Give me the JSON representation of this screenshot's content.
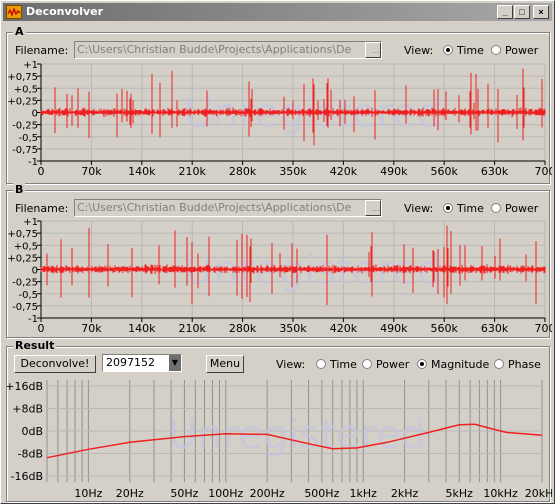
{
  "window": {
    "title": "Deconvolver",
    "min_label": "_",
    "max_label": "□",
    "close_label": "×"
  },
  "colors": {
    "wave": "#ee2020",
    "grid": "#b8b8b8",
    "plot_bg": "#d4d0c8"
  },
  "panel_a": {
    "label": "A",
    "filename_label": "Filename:",
    "filename": "C:\\Users\\Christian Budde\\Projects\\Applications\\De",
    "browse_label": "...",
    "view_label": "View:",
    "opt_time": "Time",
    "opt_power": "Power",
    "selected": "Time",
    "y_ticks": [
      "+1",
      "+0,75",
      "+0,5",
      "+0,25",
      "0",
      "-0,25",
      "-0,5",
      "-0,75",
      "-1"
    ],
    "x_ticks": [
      "0",
      "70k",
      "140k",
      "210k",
      "280k",
      "350k",
      "420k",
      "490k",
      "560k",
      "630k",
      "700"
    ]
  },
  "panel_b": {
    "label": "B",
    "filename_label": "Filename:",
    "filename": "C:\\Users\\Christian Budde\\Projects\\Applications\\De",
    "browse_label": "...",
    "view_label": "View:",
    "opt_time": "Time",
    "opt_power": "Power",
    "selected": "Time",
    "y_ticks": [
      "+1",
      "+0,75",
      "+0,5",
      "+0,25",
      "0",
      "-0,25",
      "-0,5",
      "-0,75",
      "-1"
    ],
    "x_ticks": [
      "0",
      "70k",
      "140k",
      "210k",
      "280k",
      "350k",
      "420k",
      "490k",
      "560k",
      "630k",
      "700"
    ]
  },
  "result": {
    "label": "Result",
    "deconvolve_label": "Deconvolve!",
    "fft_size": "2097152",
    "menu_label": "Menu",
    "view_label": "View:",
    "opt_time": "Time",
    "opt_power": "Power",
    "opt_magnitude": "Magnitude",
    "opt_phase": "Phase",
    "selected": "Magnitude",
    "y_ticks": [
      "+16dB",
      "+8dB",
      "0dB",
      "-8dB",
      "-16dB"
    ],
    "x_ticks": [
      "10Hz",
      "20Hz",
      "50Hz",
      "100Hz",
      "200Hz",
      "500Hz",
      "1kHz",
      "2kHz",
      "5kHz",
      "10kHz",
      "20kHz"
    ]
  },
  "watermark": "Unregistered"
}
